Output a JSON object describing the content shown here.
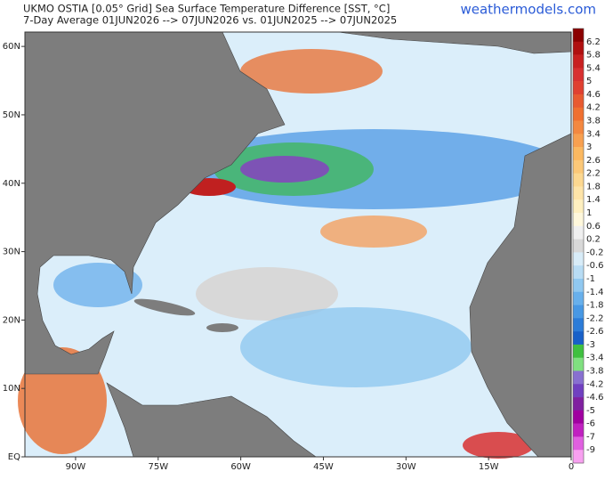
{
  "header": {
    "title": "UKMO OSTIA [0.05° Grid] Sea Surface Temperature  Difference [SST, °C]",
    "subtitle": "7-Day Average 01JUN2026 --> 07JUN2026  vs. 01JUN2025 --> 07JUN2025",
    "watermark": "weathermodels.com"
  },
  "map": {
    "lon_lim": [
      -99.2,
      0
    ],
    "lat_lim": [
      0,
      62.1
    ],
    "lon_ticks": [
      {
        "value": -90,
        "label": "90W"
      },
      {
        "value": -75,
        "label": "75W"
      },
      {
        "value": -60,
        "label": "60W"
      },
      {
        "value": -45,
        "label": "45W"
      },
      {
        "value": -30,
        "label": "30W"
      },
      {
        "value": -15,
        "label": "15W"
      },
      0
    ],
    "lat_ticks": [
      {
        "value": 60,
        "label": "60N"
      },
      {
        "value": 50,
        "label": "50N"
      },
      {
        "value": 40,
        "label": "40N"
      },
      {
        "value": 30,
        "label": "30N"
      },
      {
        "value": 20,
        "label": "20N"
      },
      {
        "value": 10,
        "label": "10N"
      },
      {
        "value": 0,
        "label": "EQ"
      }
    ]
  },
  "colorbar": {
    "ticks": [
      6.2,
      5.8,
      5.4,
      5,
      4.6,
      4.2,
      3.8,
      3.4,
      3,
      2.6,
      2.2,
      1.8,
      1.4,
      1,
      0.6,
      0.2,
      -0.2,
      -0.6,
      -1,
      -1.4,
      -1.8,
      -2.2,
      -2.6,
      -3,
      -3.4,
      -3.8,
      -4.2,
      -4.6,
      -5,
      -6,
      -7,
      -9
    ],
    "colors": [
      "#8b0000",
      "#b01010",
      "#c82020",
      "#d83030",
      "#e04030",
      "#e85a30",
      "#f07030",
      "#f48840",
      "#f8a050",
      "#fbb860",
      "#fcc878",
      "#fdd890",
      "#fee4a8",
      "#fff0c0",
      "#fff8dc",
      "#f0f0f0",
      "#d8d8d8",
      "#d8ecf8",
      "#b8dcf4",
      "#90c8f0",
      "#68b0ec",
      "#4898e4",
      "#2c7cd8",
      "#1860c8",
      "#40c040",
      "#80e080",
      "#8870d0",
      "#7040c0",
      "#8020a0",
      "#a000a0",
      "#c020c0",
      "#e060e0",
      "#f8a0f0"
    ]
  }
}
